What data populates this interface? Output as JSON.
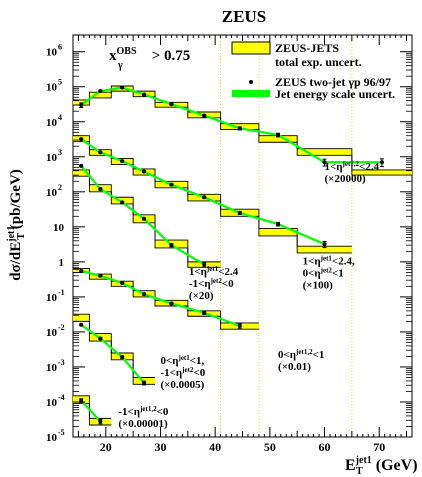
{
  "chart_data": {
    "type": "line",
    "title": "ZEUS",
    "xlabel_main": "E",
    "xlabel_sup": "jet1",
    "xlabel_sub": "T",
    "xlabel_unit": " (GeV)",
    "ylabel_prefix": "dσ/dE",
    "ylabel_sup": "jet1",
    "ylabel_sub": "T",
    "ylabel_unit": " (pb/GeV)",
    "x_scale": "linear",
    "y_scale": "log",
    "xlim": [
      14,
      76
    ],
    "ylim": [
      1e-05,
      3000000
    ],
    "x_ticks": [
      20,
      30,
      40,
      50,
      60,
      70
    ],
    "y_ticks": [
      {
        "v": 1e-05,
        "b": "10",
        "e": "-5"
      },
      {
        "v": 0.0001,
        "b": "10",
        "e": "-4"
      },
      {
        "v": 0.001,
        "b": "10",
        "e": "-3"
      },
      {
        "v": 0.01,
        "b": "10",
        "e": "-2"
      },
      {
        "v": 0.1,
        "b": "10",
        "e": "-1"
      },
      {
        "v": 1,
        "b": "1",
        "e": ""
      },
      {
        "v": 10,
        "b": "10",
        "e": ""
      },
      {
        "v": 100,
        "b": "10",
        "e": "2"
      },
      {
        "v": 1000,
        "b": "10",
        "e": "3"
      },
      {
        "v": 10000,
        "b": "10",
        "e": "4"
      },
      {
        "v": 100000,
        "b": "10",
        "e": "5"
      },
      {
        "v": 1000000,
        "b": "10",
        "e": "6"
      }
    ],
    "cut_label": {
      "main": "x",
      "sup": "OBS",
      "sub": "γ",
      "rest": " > 0.75"
    },
    "legend": {
      "placement": "top-right",
      "items": [
        {
          "kind": "band",
          "text": "ZEUS-JETS"
        },
        {
          "kind": "none",
          "text": "total exp. uncert."
        },
        {
          "kind": "point",
          "text": "ZEUS two-jet γp 96/97"
        },
        {
          "kind": "green",
          "text": "Jet energy scale uncert."
        }
      ]
    },
    "colors": {
      "band": "#ffff00",
      "band_edge": "#000000",
      "green": "#00ff00",
      "points": "#000000"
    },
    "series": [
      {
        "edges": [
          14,
          17,
          21,
          25,
          29,
          35,
          41,
          48,
          55,
          65,
          76
        ],
        "band_lo": [
          30000,
          48000,
          75000,
          52000,
          26000,
          13000,
          6000,
          2600,
          1100,
          300
        ],
        "band_hi": [
          42000,
          70000,
          105000,
          75000,
          36000,
          19000,
          8800,
          4000,
          1700,
          420
        ],
        "x": [
          15.5,
          19,
          23,
          27,
          32,
          38,
          44.5,
          51.5,
          60,
          70.5
        ],
        "y": [
          30000,
          75000,
          95000,
          60000,
          32000,
          15000,
          6500,
          4200,
          700,
          700
        ],
        "err": [
          0.15,
          0.06,
          0.06,
          0.06,
          0.06,
          0.08,
          0.1,
          0.12,
          0.22,
          0.25
        ]
      },
      {
        "edges": [
          14,
          17,
          21,
          25,
          29,
          35,
          41,
          48,
          55,
          65
        ],
        "band_lo": [
          2700,
          1100,
          600,
          300,
          130,
          55,
          20,
          5.5,
          1.8
        ],
        "band_hi": [
          4000,
          1600,
          900,
          450,
          200,
          85,
          32,
          9,
          2.8
        ],
        "x": [
          15.5,
          19,
          23,
          27,
          32,
          38,
          44.5,
          51.5,
          60
        ],
        "y": [
          3200,
          1350,
          750,
          380,
          160,
          70,
          25,
          12,
          3.2
        ],
        "err": [
          0.05,
          0.05,
          0.05,
          0.06,
          0.06,
          0.07,
          0.1,
          0.12,
          0.2
        ]
      },
      {
        "edges": [
          14,
          17,
          21,
          25,
          29,
          35,
          41
        ],
        "band_lo": [
          280,
          100,
          45,
          13,
          2.5,
          0.7
        ],
        "band_hi": [
          420,
          160,
          70,
          22,
          4.2,
          1.0
        ],
        "x": [
          15.5,
          19,
          23,
          27,
          32,
          38
        ],
        "y": [
          550,
          120,
          50,
          17,
          3,
          0.85
        ],
        "err": [
          0.06,
          0.06,
          0.06,
          0.07,
          0.1,
          0.15
        ]
      },
      {
        "edges": [
          14,
          17,
          21,
          25,
          29,
          35,
          41,
          48
        ],
        "band_lo": [
          0.5,
          0.32,
          0.2,
          0.1,
          0.055,
          0.028,
          0.012
        ],
        "band_hi": [
          0.65,
          0.45,
          0.28,
          0.15,
          0.08,
          0.04,
          0.018
        ],
        "x": [
          15.5,
          19,
          23,
          27,
          32,
          38,
          44.5
        ],
        "y": [
          0.55,
          0.4,
          0.25,
          0.12,
          0.065,
          0.035,
          0.015
        ],
        "err": [
          0.05,
          0.05,
          0.05,
          0.06,
          0.07,
          0.1,
          0.15
        ]
      },
      {
        "edges": [
          14,
          17,
          21,
          25,
          29
        ],
        "band_lo": [
          0.02,
          0.0055,
          0.0016,
          0.00032
        ],
        "band_hi": [
          0.032,
          0.009,
          0.0025,
          0.0005
        ],
        "x": [
          15.5,
          19,
          23,
          27
        ],
        "y": [
          0.016,
          0.0065,
          0.0019,
          0.00035
        ],
        "err": [
          0.06,
          0.07,
          0.09,
          0.12
        ]
      },
      {
        "edges": [
          14,
          17,
          21
        ],
        "band_lo": [
          9e-05,
          2.2e-05
        ],
        "band_hi": [
          0.00015,
          3.4e-05
        ],
        "x": [
          15.5,
          19
        ],
        "y": [
          0.00011,
          2.8e-05
        ],
        "err": [
          0.12,
          0.15
        ]
      }
    ],
    "guides": [
      {
        "x": 41
      },
      {
        "x": 48
      },
      {
        "x": 65
      }
    ],
    "annotations": [
      {
        "x": 60,
        "y": 420,
        "lines": [
          {
            "t": "1<η",
            "sup": "jet1,2",
            "rest": "<2.4"
          },
          {
            "t": "(×20000)",
            "sup": "",
            "rest": ""
          }
        ]
      },
      {
        "x": 56,
        "y": 0.85,
        "lines": [
          {
            "t": "1<η",
            "sup": "jet1",
            "rest": "<2.4,"
          },
          {
            "t": "0<η",
            "sup": "jet2",
            "rest": "<1"
          },
          {
            "t": "(×100)",
            "sup": "",
            "rest": ""
          }
        ]
      },
      {
        "x": 35.2,
        "y": 0.42,
        "lines": [
          {
            "t": "1<η",
            "sup": "jet1",
            "rest": "<2.4"
          },
          {
            "t": "-1<η",
            "sup": "jet2",
            "rest": "<0"
          },
          {
            "t": "(×20)",
            "sup": "",
            "rest": ""
          }
        ]
      },
      {
        "x": 51.5,
        "y": 0.0018,
        "lines": [
          {
            "t": "0<η",
            "sup": "jet1,2",
            "rest": "<1"
          },
          {
            "t": "(×0.01)",
            "sup": "",
            "rest": ""
          }
        ]
      },
      {
        "x": 30,
        "y": 0.0012,
        "lines": [
          {
            "t": "0<η",
            "sup": "jet1",
            "rest": "<1,"
          },
          {
            "t": "-1<η",
            "sup": "jet2",
            "rest": "<0"
          },
          {
            "t": "(×0.0005)",
            "sup": "",
            "rest": ""
          }
        ]
      },
      {
        "x": 22.3,
        "y": 4.2e-05,
        "lines": [
          {
            "t": "-1<η",
            "sup": "jet1,2",
            "rest": "<0"
          },
          {
            "t": "(×0.00001)",
            "sup": "",
            "rest": ""
          }
        ]
      }
    ]
  }
}
